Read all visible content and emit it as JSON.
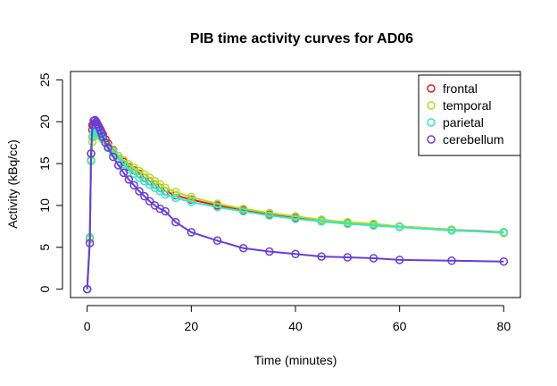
{
  "chart_data": {
    "type": "line",
    "title": "PIB time activity curves for AD06",
    "xlabel": "Time (minutes)",
    "ylabel": "Activity (kBq/cc)",
    "xlim": [
      -3.2,
      83.2
    ],
    "ylim": [
      -1.0,
      26.0
    ],
    "x_ticks": [
      0,
      20,
      40,
      60,
      80
    ],
    "y_ticks": [
      0,
      5,
      10,
      15,
      20,
      25
    ],
    "grid": false,
    "legend_position": "top-right",
    "x": [
      0,
      0.5,
      0.75,
      1,
      1.25,
      1.5,
      1.75,
      2,
      2.25,
      2.5,
      2.75,
      3,
      3.5,
      4,
      5,
      6,
      7,
      8,
      9,
      10,
      11,
      12,
      13,
      14,
      15,
      17,
      20,
      25,
      30,
      35,
      40,
      45,
      50,
      55,
      60,
      70,
      80
    ],
    "series": [
      {
        "name": "frontal",
        "color": "#e41a1c",
        "values": [
          0,
          6.0,
          16.2,
          19.0,
          19.5,
          19.8,
          19.7,
          19.5,
          19.3,
          19.1,
          18.8,
          18.5,
          17.9,
          17.4,
          16.6,
          15.9,
          15.2,
          14.6,
          14.2,
          13.8,
          13.3,
          12.9,
          12.5,
          12.1,
          11.7,
          11.2,
          10.7,
          10.0,
          9.4,
          8.9,
          8.5,
          8.2,
          7.9,
          7.7,
          7.5,
          7.1,
          6.8
        ]
      },
      {
        "name": "temporal",
        "color": "#b3de1a",
        "values": [
          0,
          6.0,
          15.5,
          17.6,
          18.2,
          18.6,
          18.6,
          18.5,
          18.4,
          18.3,
          18.1,
          17.9,
          17.5,
          17.1,
          16.5,
          15.9,
          15.4,
          14.9,
          14.5,
          14.1,
          13.7,
          13.3,
          12.9,
          12.5,
          12.1,
          11.6,
          11.0,
          10.2,
          9.6,
          9.1,
          8.7,
          8.3,
          8.0,
          7.8,
          7.5,
          7.1,
          6.7
        ]
      },
      {
        "name": "parietal",
        "color": "#33e6cc",
        "values": [
          0,
          6.2,
          15.3,
          18.2,
          18.7,
          19.0,
          19.0,
          18.9,
          18.7,
          18.5,
          18.3,
          18.0,
          17.5,
          17.0,
          16.3,
          15.6,
          14.9,
          14.3,
          13.8,
          13.3,
          12.9,
          12.5,
          12.1,
          11.7,
          11.3,
          10.9,
          10.4,
          9.8,
          9.3,
          8.8,
          8.4,
          8.1,
          7.8,
          7.6,
          7.4,
          7.0,
          6.8
        ]
      },
      {
        "name": "cerebellum",
        "color": "#6a3dd6",
        "values": [
          0,
          5.5,
          16.2,
          19.6,
          20.1,
          20.2,
          20.0,
          19.7,
          19.4,
          19.0,
          18.6,
          18.2,
          17.5,
          16.9,
          15.8,
          14.8,
          13.9,
          13.1,
          12.4,
          11.7,
          11.1,
          10.5,
          10.0,
          9.6,
          9.3,
          8.0,
          6.8,
          5.8,
          4.9,
          4.5,
          4.2,
          3.9,
          3.8,
          3.7,
          3.5,
          3.4,
          3.3
        ]
      }
    ]
  }
}
